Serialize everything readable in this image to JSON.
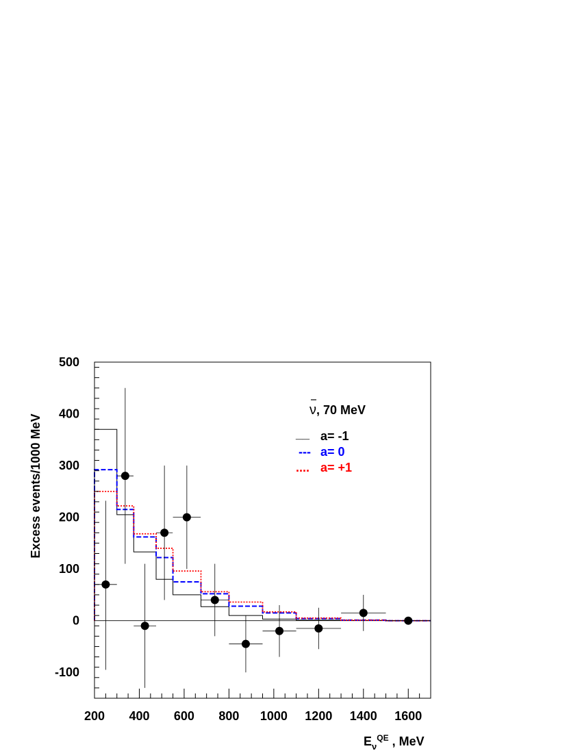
{
  "chart_data": {
    "type": "line",
    "ylabel": "Excess events/1000 MeV",
    "xlabel": {
      "main": "E",
      "sub": "ν",
      "sup": "QE",
      "unit": " , MeV"
    },
    "annotation": {
      "symbol": "ν",
      "text": ", 70 MeV"
    },
    "xlim": [
      200,
      1700
    ],
    "ylim": [
      -150,
      500
    ],
    "x_ticks": [
      200,
      400,
      600,
      800,
      1000,
      1200,
      1400,
      1600
    ],
    "y_ticks": [
      -100,
      0,
      100,
      200,
      300,
      400,
      500
    ],
    "bin_edges": [
      200,
      300,
      375,
      475,
      550,
      675,
      800,
      950,
      1100,
      1300,
      1500,
      1700
    ],
    "series": [
      {
        "name": "a= -1",
        "legend_marker": "__",
        "color": "#000000",
        "dash": "solid",
        "values": [
          370,
          205,
          133,
          80,
          50,
          27,
          10,
          3,
          1,
          0.5,
          0
        ]
      },
      {
        "name": "a= 0",
        "legend_marker": "---",
        "color": "#0000ff",
        "dash": "dashed",
        "values": [
          292,
          215,
          162,
          122,
          75,
          52,
          28,
          15,
          4,
          1,
          0
        ]
      },
      {
        "name": "a= +1",
        "legend_marker": "....",
        "color": "#ff0000",
        "dash": "dotted",
        "values": [
          250,
          222,
          168,
          140,
          96,
          56,
          36,
          17,
          5,
          1,
          0
        ]
      }
    ],
    "data_points": [
      {
        "x": 250,
        "y": 70,
        "xerr": 50,
        "ylow": -95,
        "yhigh": 232
      },
      {
        "x": 337,
        "y": 280,
        "xerr": 37,
        "ylow": 110,
        "yhigh": 450
      },
      {
        "x": 425,
        "y": -10,
        "xerr": 50,
        "ylow": -130,
        "yhigh": 110
      },
      {
        "x": 512,
        "y": 170,
        "xerr": 37,
        "ylow": 40,
        "yhigh": 300
      },
      {
        "x": 612,
        "y": 200,
        "xerr": 62,
        "ylow": 100,
        "yhigh": 300
      },
      {
        "x": 737,
        "y": 40,
        "xerr": 62,
        "ylow": -30,
        "yhigh": 110
      },
      {
        "x": 875,
        "y": -45,
        "xerr": 75,
        "ylow": -100,
        "yhigh": 10
      },
      {
        "x": 1025,
        "y": -20,
        "xerr": 75,
        "ylow": -70,
        "yhigh": 30
      },
      {
        "x": 1200,
        "y": -15,
        "xerr": 100,
        "ylow": -55,
        "yhigh": 25
      },
      {
        "x": 1400,
        "y": 15,
        "xerr": 100,
        "ylow": -20,
        "yhigh": 50
      },
      {
        "x": 1600,
        "y": 0,
        "xerr": 100,
        "ylow": -5,
        "yhigh": 5
      }
    ],
    "zero_line": true,
    "grid": false,
    "legend_position": "top-right"
  }
}
